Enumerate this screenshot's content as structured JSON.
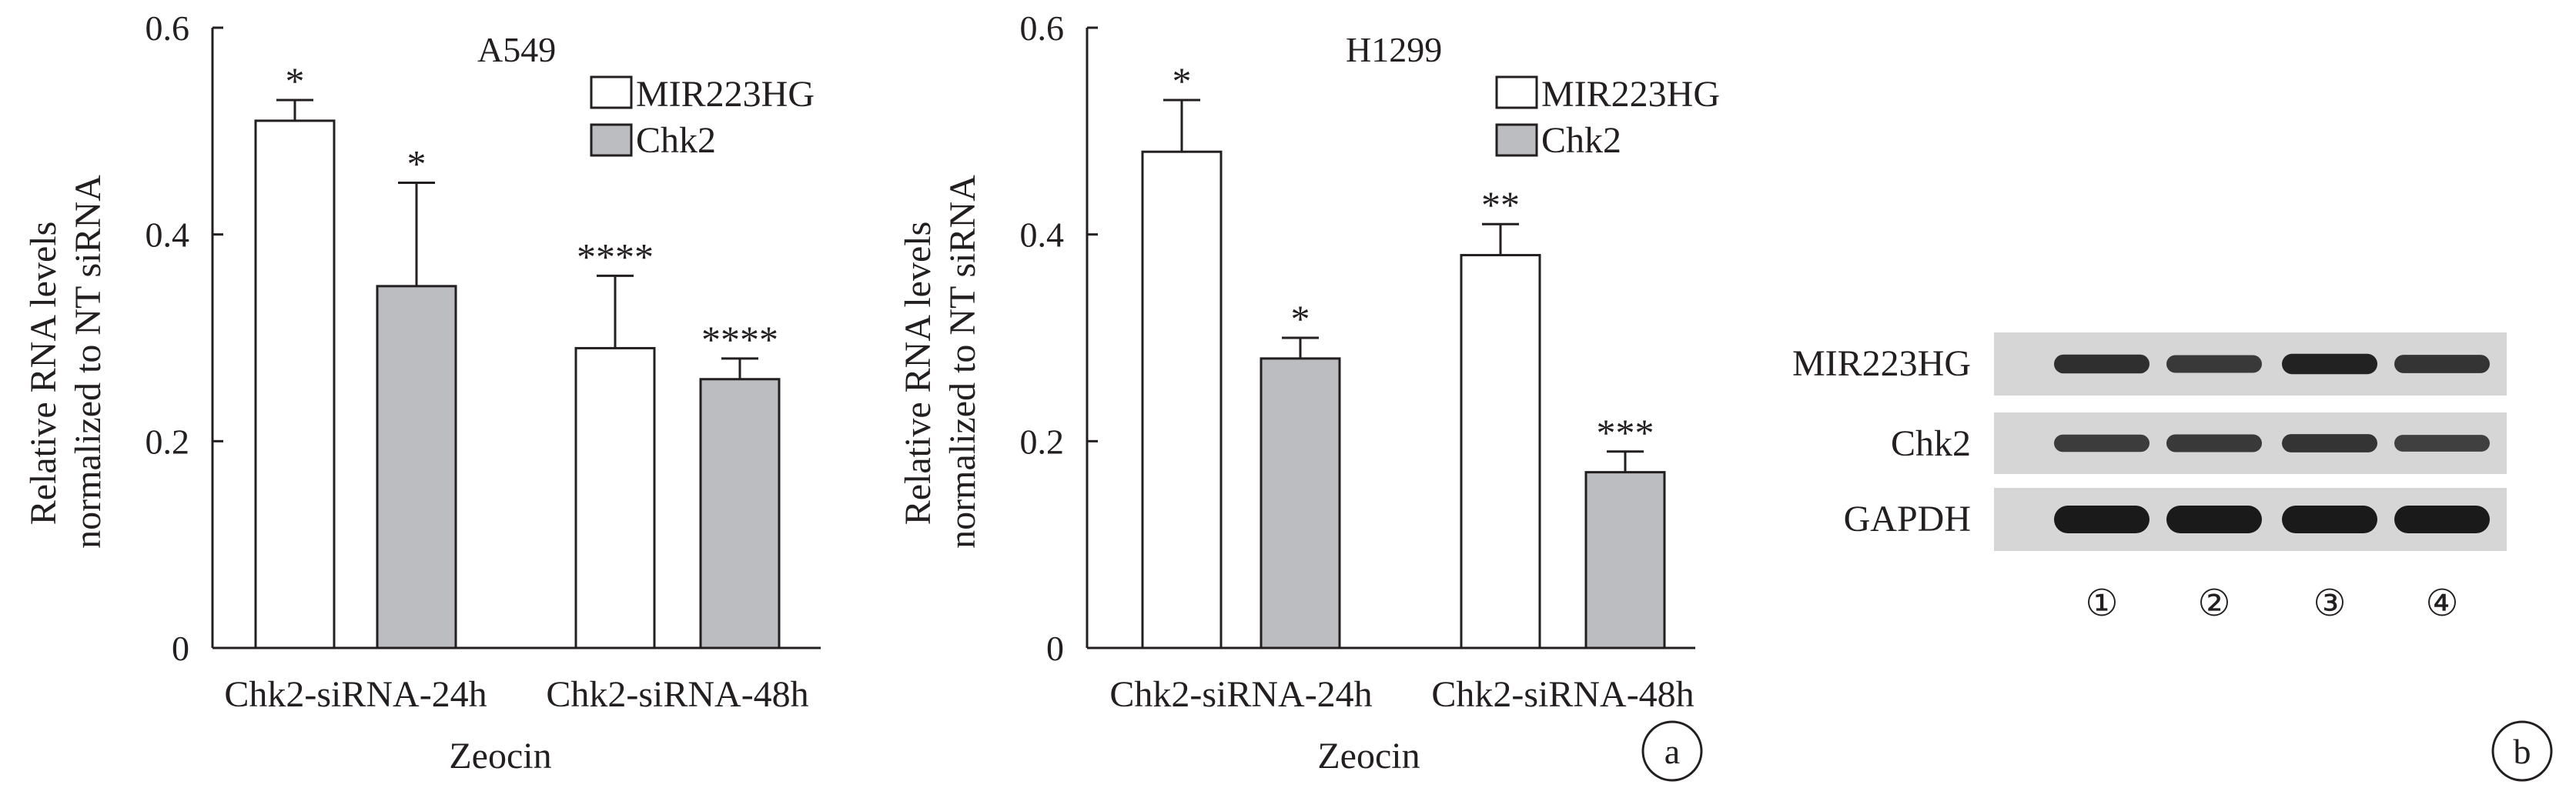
{
  "panels": [
    {
      "chart_data": {
        "type": "bar",
        "title": "A549",
        "xlabel": "Zeocin",
        "ylabel": [
          "Relative RNA levels",
          "normalized to NT siRNA"
        ],
        "categories": [
          "Chk2-siRNA-24h",
          "Chk2-siRNA-48h"
        ],
        "series": [
          {
            "name": "MIR223HG",
            "values": [
              0.51,
              0.29
            ],
            "errors": [
              0.02,
              0.07
            ],
            "sig": [
              "*",
              "****"
            ]
          },
          {
            "name": "Chk2",
            "values": [
              0.35,
              0.26
            ],
            "errors": [
              0.1,
              0.02
            ],
            "sig": [
              "*",
              "****"
            ]
          }
        ],
        "ylim": [
          0,
          0.6
        ],
        "yticks": [
          "0",
          "0.2",
          "0.4",
          "0.6"
        ],
        "grid": false,
        "legend_position": "top-right",
        "series_colors": [
          "#ffffff",
          "#bcbdc0"
        ]
      }
    },
    {
      "chart_data": {
        "type": "bar",
        "title": "H1299",
        "xlabel": "Zeocin",
        "ylabel": [
          "Relative RNA levels",
          "normalized to NT siRNA"
        ],
        "categories": [
          "Chk2-siRNA-24h",
          "Chk2-siRNA-48h"
        ],
        "series": [
          {
            "name": "MIR223HG",
            "values": [
              0.48,
              0.38
            ],
            "errors": [
              0.05,
              0.03
            ],
            "sig": [
              "*",
              "**"
            ]
          },
          {
            "name": "Chk2",
            "values": [
              0.28,
              0.17
            ],
            "errors": [
              0.02,
              0.02
            ],
            "sig": [
              "*",
              "***"
            ]
          }
        ],
        "ylim": [
          0,
          0.6
        ],
        "yticks": [
          "0",
          "0.2",
          "0.4",
          "0.6"
        ],
        "grid": false,
        "legend_position": "top-right",
        "series_colors": [
          "#ffffff",
          "#bcbdc0"
        ]
      }
    }
  ],
  "panel_labels": {
    "a": "a",
    "b": "b"
  },
  "western_blot": {
    "rows": [
      "MIR223HG",
      "Chk2",
      "GAPDH"
    ],
    "lanes": [
      "①",
      "②",
      "③",
      "④"
    ],
    "band_intensity": [
      [
        0.75,
        0.65,
        0.9,
        0.7
      ],
      [
        0.6,
        0.65,
        0.7,
        0.55
      ],
      [
        1.0,
        1.0,
        1.0,
        1.0
      ]
    ],
    "strip_color": "#d6d6d6",
    "band_color": "#1a1a1a"
  }
}
